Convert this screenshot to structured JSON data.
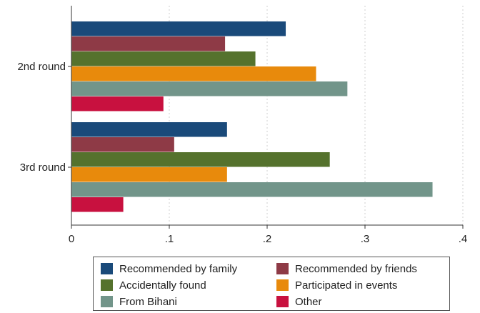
{
  "chart_data": {
    "type": "bar",
    "orientation": "horizontal",
    "categories": [
      "2nd round",
      "3rd round"
    ],
    "series": [
      {
        "name": "Recommended by family",
        "color": "#1a4a7a",
        "values": [
          0.219,
          0.159
        ]
      },
      {
        "name": "Recommended by friends",
        "color": "#8e3a46",
        "values": [
          0.157,
          0.105
        ]
      },
      {
        "name": "Accidentally found",
        "color": "#55722d",
        "values": [
          0.188,
          0.264
        ]
      },
      {
        "name": "Participated in events",
        "color": "#e88a0c",
        "values": [
          0.25,
          0.159
        ]
      },
      {
        "name": "From Bihani",
        "color": "#72958a",
        "values": [
          0.282,
          0.369
        ]
      },
      {
        "name": "Other",
        "color": "#c8113f",
        "values": [
          0.094,
          0.053
        ]
      }
    ],
    "xticks": [
      0,
      0.1,
      0.2,
      0.3,
      0.4
    ],
    "xtick_labels": [
      "0",
      ".1",
      ".2",
      ".3",
      ".4"
    ],
    "xlim": [
      0,
      0.4
    ],
    "grid": true,
    "legend_position": "bottom",
    "title": "",
    "xlabel": "",
    "ylabel": ""
  }
}
